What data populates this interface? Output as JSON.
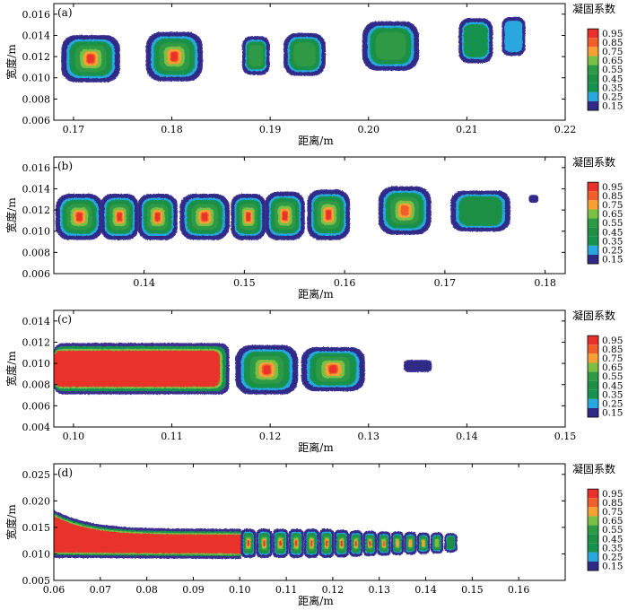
{
  "chart_data": [
    {
      "type": "heatmap",
      "panel_label": "(a)",
      "xlabel": "距离/m",
      "ylabel": "宽度/m",
      "xlim": [
        0.168,
        0.22
      ],
      "ylim": [
        0.006,
        0.017
      ],
      "xticks": [
        "0.17",
        "0.18",
        "0.19",
        "0.20",
        "0.21",
        "0.22"
      ],
      "yticks": [
        "0.006",
        "0.008",
        "0.010",
        "0.012",
        "0.014",
        "0.016"
      ],
      "legend_title": "凝固系数",
      "legend_levels": [
        "0.95",
        "0.85",
        "0.75",
        "0.65",
        "0.55",
        "0.45",
        "0.35",
        "0.25",
        "0.15"
      ],
      "blobs": [
        {
          "x0": 0.1689,
          "x1": 0.1746,
          "y0": 0.0097,
          "y1": 0.0139,
          "max_level": 0.95
        },
        {
          "x0": 0.1775,
          "x1": 0.183,
          "y0": 0.0098,
          "y1": 0.0142,
          "max_level": 0.95
        },
        {
          "x0": 0.1873,
          "x1": 0.1898,
          "y0": 0.0104,
          "y1": 0.0138,
          "max_level": 0.55
        },
        {
          "x0": 0.1915,
          "x1": 0.1955,
          "y0": 0.0103,
          "y1": 0.0141,
          "max_level": 0.55
        },
        {
          "x0": 0.1995,
          "x1": 0.205,
          "y0": 0.0108,
          "y1": 0.0152,
          "max_level": 0.55
        },
        {
          "x0": 0.2093,
          "x1": 0.2125,
          "y0": 0.0115,
          "y1": 0.0155,
          "max_level": 0.35
        },
        {
          "x0": 0.2137,
          "x1": 0.2158,
          "y0": 0.0122,
          "y1": 0.0156,
          "max_level": 0.25
        }
      ]
    },
    {
      "type": "heatmap",
      "panel_label": "(b)",
      "xlabel": "距离/m",
      "ylabel": "宽度/m",
      "xlim": [
        0.131,
        0.182
      ],
      "ylim": [
        0.006,
        0.017
      ],
      "xticks": [
        "0.14",
        "0.15",
        "0.16",
        "0.17",
        "0.18"
      ],
      "yticks": [
        "0.006",
        "0.008",
        "0.010",
        "0.012",
        "0.014",
        "0.016"
      ],
      "legend_title": "凝固系数",
      "legend_levels": [
        "0.95",
        "0.85",
        "0.75",
        "0.65",
        "0.55",
        "0.45",
        "0.35",
        "0.25",
        "0.15"
      ],
      "blobs": [
        {
          "x0": 0.1313,
          "x1": 0.1358,
          "y0": 0.0093,
          "y1": 0.0134,
          "max_level": 0.95
        },
        {
          "x0": 0.1358,
          "x1": 0.1393,
          "y0": 0.0093,
          "y1": 0.0134,
          "max_level": 0.95
        },
        {
          "x0": 0.1395,
          "x1": 0.1432,
          "y0": 0.0093,
          "y1": 0.0134,
          "max_level": 0.95
        },
        {
          "x0": 0.1437,
          "x1": 0.1484,
          "y0": 0.0093,
          "y1": 0.0134,
          "max_level": 0.95
        },
        {
          "x0": 0.1488,
          "x1": 0.152,
          "y0": 0.0093,
          "y1": 0.0134,
          "max_level": 0.95
        },
        {
          "x0": 0.1522,
          "x1": 0.1559,
          "y0": 0.0093,
          "y1": 0.0136,
          "max_level": 0.95
        },
        {
          "x0": 0.1564,
          "x1": 0.1604,
          "y0": 0.0093,
          "y1": 0.0138,
          "max_level": 0.95
        },
        {
          "x0": 0.1635,
          "x1": 0.1685,
          "y0": 0.0098,
          "y1": 0.0141,
          "max_level": 0.85
        },
        {
          "x0": 0.1707,
          "x1": 0.1764,
          "y0": 0.0101,
          "y1": 0.0137,
          "max_level": 0.45
        },
        {
          "x0": 0.1785,
          "x1": 0.1792,
          "y0": 0.0128,
          "y1": 0.0133,
          "max_level": 0.15
        }
      ]
    },
    {
      "type": "heatmap",
      "panel_label": "(c)",
      "xlabel": "距离/m",
      "ylabel": "宽度/m",
      "xlim": [
        0.098,
        0.15
      ],
      "ylim": [
        0.004,
        0.015
      ],
      "xticks": [
        "0.10",
        "0.11",
        "0.12",
        "0.13",
        "0.14",
        "0.15"
      ],
      "yticks": [
        "0.004",
        "0.006",
        "0.008",
        "0.010",
        "0.012",
        "0.014"
      ],
      "legend_title": "凝固系数",
      "legend_levels": [
        "0.95",
        "0.85",
        "0.75",
        "0.65",
        "0.55",
        "0.45",
        "0.35",
        "0.25",
        "0.15"
      ],
      "blobs": [
        {
          "x0": 0.098,
          "x1": 0.1157,
          "y0": 0.0072,
          "y1": 0.0118,
          "max_level": 0.95
        },
        {
          "x0": 0.1166,
          "x1": 0.1227,
          "y0": 0.0072,
          "y1": 0.0116,
          "max_level": 0.95
        },
        {
          "x0": 0.1233,
          "x1": 0.1295,
          "y0": 0.0075,
          "y1": 0.0114,
          "max_level": 0.95
        },
        {
          "x0": 0.1337,
          "x1": 0.1363,
          "y0": 0.0093,
          "y1": 0.0102,
          "max_level": 0.15
        }
      ]
    },
    {
      "type": "heatmap",
      "panel_label": "(d)",
      "xlabel": "距离/m",
      "ylabel": "宽度/m",
      "xlim": [
        0.06,
        0.17
      ],
      "ylim": [
        0.005,
        0.027
      ],
      "xticks": [
        "0.06",
        "0.07",
        "0.08",
        "0.09",
        "0.10",
        "0.11",
        "0.12",
        "0.13",
        "0.14",
        "0.15",
        "0.16"
      ],
      "yticks": [
        "0.005",
        "0.010",
        "0.015",
        "0.020",
        "0.025"
      ],
      "legend_title": "凝固系数",
      "legend_levels": [
        "0.95",
        "0.85",
        "0.75",
        "0.65",
        "0.55",
        "0.45",
        "0.35",
        "0.25",
        "0.15"
      ],
      "blobs": [
        {
          "x0": 0.1005,
          "x1": 0.1032,
          "y0": 0.0095,
          "y1": 0.0145,
          "max_level": 0.95
        },
        {
          "x0": 0.1038,
          "x1": 0.1067,
          "y0": 0.0095,
          "y1": 0.0145,
          "max_level": 0.95
        },
        {
          "x0": 0.1073,
          "x1": 0.1102,
          "y0": 0.0095,
          "y1": 0.0145,
          "max_level": 0.95
        },
        {
          "x0": 0.1108,
          "x1": 0.1135,
          "y0": 0.0095,
          "y1": 0.0145,
          "max_level": 0.95
        },
        {
          "x0": 0.1141,
          "x1": 0.1168,
          "y0": 0.0095,
          "y1": 0.0145,
          "max_level": 0.95
        },
        {
          "x0": 0.1174,
          "x1": 0.12,
          "y0": 0.0095,
          "y1": 0.0145,
          "max_level": 0.95
        },
        {
          "x0": 0.1206,
          "x1": 0.1232,
          "y0": 0.0096,
          "y1": 0.0143,
          "max_level": 0.95
        },
        {
          "x0": 0.1238,
          "x1": 0.1262,
          "y0": 0.0097,
          "y1": 0.0142,
          "max_level": 0.95
        },
        {
          "x0": 0.1268,
          "x1": 0.1292,
          "y0": 0.0098,
          "y1": 0.0141,
          "max_level": 0.95
        },
        {
          "x0": 0.1298,
          "x1": 0.1322,
          "y0": 0.0099,
          "y1": 0.014,
          "max_level": 0.85
        },
        {
          "x0": 0.1328,
          "x1": 0.135,
          "y0": 0.01,
          "y1": 0.014,
          "max_level": 0.75
        },
        {
          "x0": 0.1356,
          "x1": 0.1378,
          "y0": 0.0101,
          "y1": 0.0139,
          "max_level": 0.75
        },
        {
          "x0": 0.1384,
          "x1": 0.1406,
          "y0": 0.0102,
          "y1": 0.0138,
          "max_level": 0.75
        },
        {
          "x0": 0.1413,
          "x1": 0.1435,
          "y0": 0.0103,
          "y1": 0.0138,
          "max_level": 0.65
        },
        {
          "x0": 0.1443,
          "x1": 0.1465,
          "y0": 0.0105,
          "y1": 0.0137,
          "max_level": 0.45
        }
      ]
    }
  ]
}
